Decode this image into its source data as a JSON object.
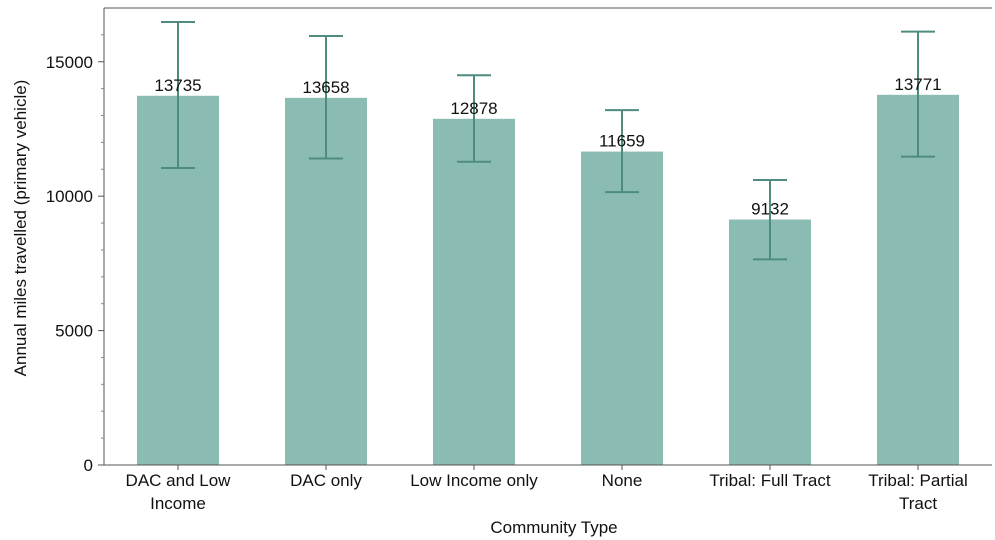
{
  "chart_data": {
    "type": "bar",
    "xlabel": "Community Type",
    "ylabel": "Annual miles travelled (primary vehicle)",
    "ylim": [
      0,
      17000
    ],
    "yticks": [
      0,
      5000,
      10000,
      15000
    ],
    "categories": [
      [
        "DAC and Low",
        "Income"
      ],
      [
        "DAC only"
      ],
      [
        "Low Income only"
      ],
      [
        "None"
      ],
      [
        "Tribal: Full Tract"
      ],
      [
        "Tribal: Partial",
        "Tract"
      ]
    ],
    "values": [
      13735,
      13658,
      12878,
      11659,
      9132,
      13771
    ],
    "value_labels": [
      "13735",
      "13658",
      "12878",
      "11659",
      "9132",
      "13771"
    ],
    "error_low": [
      11050,
      11400,
      11280,
      10150,
      7650,
      11470
    ],
    "error_high": [
      16480,
      15960,
      14500,
      13200,
      10600,
      16120
    ],
    "grid": false,
    "bar_color": "#8bbcb3",
    "error_color": "#4e8c80"
  }
}
